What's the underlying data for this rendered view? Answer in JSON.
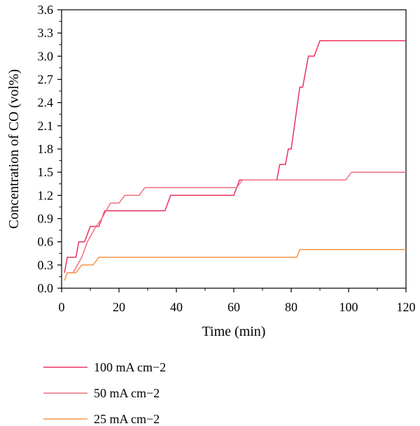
{
  "chart_data": {
    "type": "line",
    "xlabel": "Time (min)",
    "ylabel": "Concentration of CO (vol%)",
    "xlim": [
      0,
      120
    ],
    "ylim": [
      0,
      3.6
    ],
    "xticks": [
      "0",
      "20",
      "40",
      "60",
      "80",
      "100",
      "120"
    ],
    "yticks": [
      "0.0",
      "0.3",
      "0.6",
      "0.9",
      "1.2",
      "1.5",
      "1.8",
      "2.1",
      "2.4",
      "2.7",
      "3.0",
      "3.3",
      "3.6"
    ],
    "grid": false,
    "legend_position": "below",
    "series": [
      {
        "name": "100 mA cm−2",
        "color": "#e8335e",
        "x": [
          1,
          2,
          5,
          6,
          8,
          10,
          13,
          15,
          36,
          38,
          60,
          62,
          75,
          76,
          78,
          79,
          80,
          83,
          84,
          86,
          87,
          88,
          90,
          120
        ],
        "y": [
          0.2,
          0.4,
          0.4,
          0.6,
          0.6,
          0.8,
          0.8,
          1.0,
          1.0,
          1.2,
          1.2,
          1.4,
          1.4,
          1.6,
          1.6,
          1.8,
          1.8,
          2.6,
          2.6,
          3.0,
          3.0,
          3.0,
          3.2,
          3.2
        ]
      },
      {
        "name": "50 mA cm−2",
        "color": "#f1707e",
        "x": [
          2,
          4,
          7,
          9,
          12,
          14,
          17,
          20,
          22,
          27,
          29,
          61,
          63,
          99,
          101,
          120
        ],
        "y": [
          0.2,
          0.2,
          0.4,
          0.6,
          0.8,
          0.9,
          1.1,
          1.1,
          1.2,
          1.2,
          1.3,
          1.3,
          1.4,
          1.4,
          1.5,
          1.5
        ]
      },
      {
        "name": "25 mA cm−2",
        "color": "#f6964a",
        "x": [
          1,
          2,
          5,
          7,
          11,
          13,
          82,
          83,
          120
        ],
        "y": [
          0.1,
          0.2,
          0.2,
          0.3,
          0.3,
          0.4,
          0.4,
          0.5,
          0.5
        ]
      }
    ]
  }
}
